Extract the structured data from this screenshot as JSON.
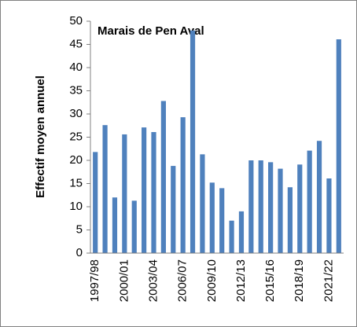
{
  "chart_data": {
    "type": "bar",
    "title": "Marais de Pen Aval",
    "y_label": "Effectif moyen annuel",
    "categories": [
      "1997/98",
      null,
      null,
      "2000/01",
      null,
      null,
      "2003/04",
      null,
      null,
      "2006/07",
      null,
      null,
      "2009/10",
      null,
      null,
      "2012/13",
      null,
      null,
      "2015/16",
      null,
      null,
      "2018/19",
      null,
      null,
      "2021/22",
      null
    ],
    "values": [
      21.8,
      27.6,
      12,
      25.6,
      11.3,
      27.1,
      26.1,
      32.8,
      18.8,
      29.3,
      48,
      21.3,
      15.2,
      14,
      7,
      9,
      20,
      20,
      19.6,
      18.2,
      14.2,
      19.1,
      22.1,
      24.2,
      16.1,
      46.1
    ],
    "color": "#4f81bd",
    "ylim": [
      0,
      50
    ],
    "yticks": [
      0,
      5,
      10,
      15,
      20,
      25,
      30,
      35,
      40,
      45,
      50
    ],
    "grid": false
  }
}
